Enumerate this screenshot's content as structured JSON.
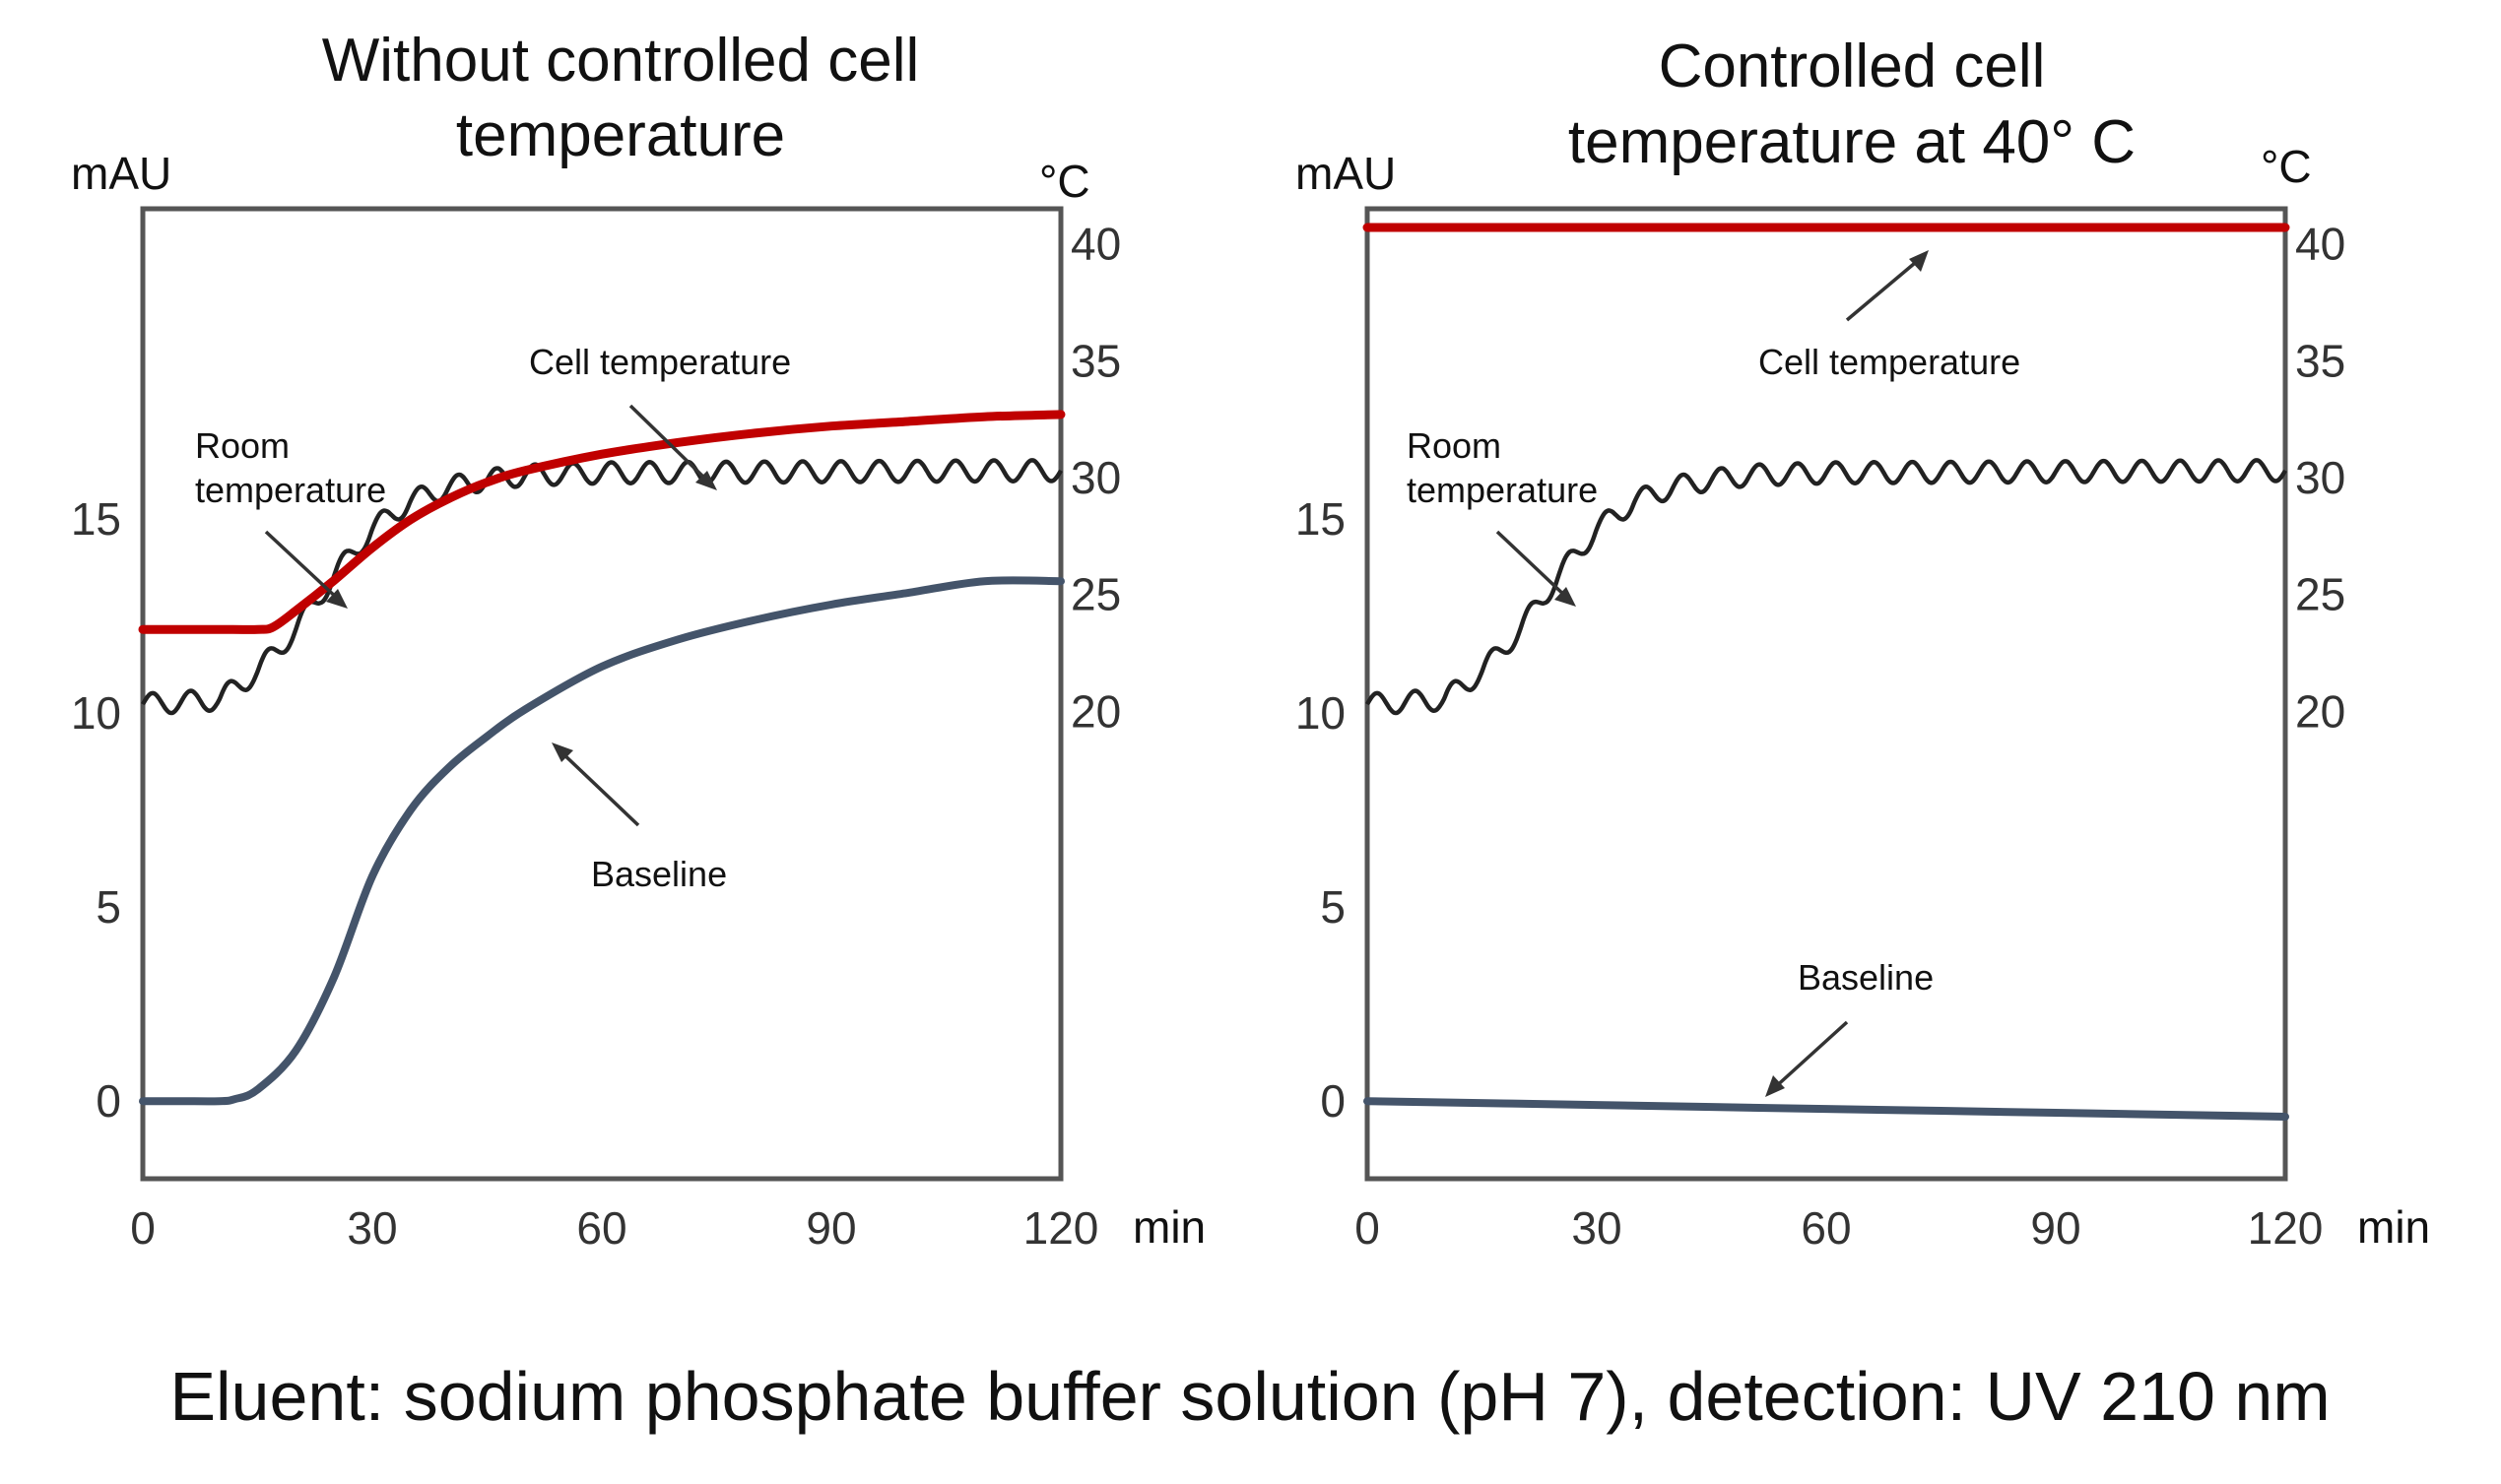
{
  "caption": "Eluent: sodium phosphate buffer solution (pH 7), detection: UV 210 nm",
  "colors": {
    "cell_temperature": "#c00000",
    "baseline": "#44546a",
    "room_temperature": "#222222"
  },
  "chart_data": [
    {
      "type": "line",
      "title_lines": [
        "Without controlled cell",
        "temperature"
      ],
      "left_unit": "mAU",
      "right_unit": "°C",
      "x_unit": "min",
      "xlim": [
        0,
        120
      ],
      "ylim_left": [
        -2,
        23
      ],
      "ylim_right": [
        0,
        41.5
      ],
      "x_ticks": [
        0,
        30,
        60,
        90,
        120
      ],
      "y_ticks_left": [
        0,
        5,
        10,
        15
      ],
      "y_ticks_right": [
        20,
        25,
        30,
        35,
        40
      ],
      "annotations": {
        "cell_temperature": "Cell temperature",
        "room_temperature": [
          "Room",
          "temperature"
        ],
        "baseline": "Baseline"
      },
      "series": [
        {
          "key": "cell_temperature",
          "axis": "right",
          "x": [
            0,
            5,
            10,
            15,
            17,
            20,
            25,
            30,
            35,
            40,
            45,
            50,
            60,
            70,
            80,
            90,
            100,
            110,
            120
          ],
          "y": [
            23.5,
            23.5,
            23.5,
            23.5,
            23.6,
            24.3,
            25.6,
            27.0,
            28.2,
            29.1,
            29.8,
            30.3,
            31.0,
            31.5,
            31.9,
            32.2,
            32.4,
            32.6,
            32.7
          ]
        },
        {
          "key": "baseline",
          "axis": "left",
          "x": [
            0,
            5,
            10,
            12,
            15,
            20,
            25,
            30,
            35,
            40,
            45,
            50,
            60,
            70,
            80,
            90,
            100,
            110,
            120
          ],
          "y": [
            0.0,
            0.0,
            0.0,
            0.05,
            0.3,
            1.3,
            3.2,
            5.8,
            7.5,
            8.6,
            9.4,
            10.1,
            11.2,
            11.9,
            12.4,
            12.8,
            13.1,
            13.4,
            13.4
          ]
        },
        {
          "key": "room_temperature",
          "axis": "right",
          "trend_x": [
            0,
            10,
            15,
            20,
            25,
            30,
            35,
            40,
            45,
            50,
            60,
            120
          ],
          "trend_y": [
            20.3,
            20.5,
            21.7,
            23.5,
            25.8,
            27.8,
            29.0,
            29.6,
            29.9,
            30.1,
            30.2,
            30.3
          ],
          "oscillation": {
            "amplitude_c": 0.45,
            "period_min": 5
          }
        }
      ]
    },
    {
      "type": "line",
      "title_lines": [
        "Controlled cell",
        "temperature at 40°  C"
      ],
      "left_unit": "mAU",
      "right_unit": "°C",
      "x_unit": "min",
      "xlim": [
        0,
        120
      ],
      "ylim_left": [
        -2,
        23
      ],
      "ylim_right": [
        0,
        41.5
      ],
      "x_ticks": [
        0,
        30,
        60,
        90,
        120
      ],
      "y_ticks_left": [
        0,
        5,
        10,
        15
      ],
      "y_ticks_right": [
        20,
        25,
        30,
        35,
        40
      ],
      "annotations": {
        "cell_temperature": "Cell temperature",
        "room_temperature": [
          "Room",
          "temperature"
        ],
        "baseline": "Baseline"
      },
      "series": [
        {
          "key": "cell_temperature",
          "axis": "right",
          "x": [
            0,
            120
          ],
          "y": [
            40.7,
            40.7
          ]
        },
        {
          "key": "baseline",
          "axis": "left",
          "x": [
            0,
            30,
            60,
            90,
            120
          ],
          "y": [
            0.0,
            -0.1,
            -0.2,
            -0.3,
            -0.4
          ]
        },
        {
          "key": "room_temperature",
          "axis": "right",
          "trend_x": [
            0,
            10,
            15,
            20,
            25,
            30,
            35,
            40,
            45,
            50,
            60,
            120
          ],
          "trend_y": [
            20.3,
            20.5,
            21.7,
            23.5,
            25.8,
            27.8,
            29.0,
            29.6,
            29.9,
            30.1,
            30.2,
            30.3
          ],
          "oscillation": {
            "amplitude_c": 0.45,
            "period_min": 5
          }
        }
      ]
    }
  ]
}
